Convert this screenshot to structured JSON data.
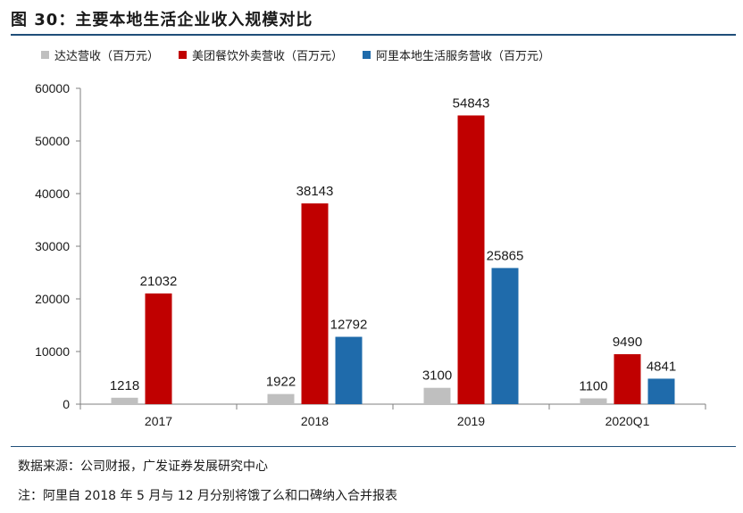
{
  "figure": {
    "title": "图 30：主要本地生活企业收入规模对比",
    "source": "数据来源：公司财报，广发证券发展研究中心",
    "note": "注：阿里自 2018 年 5 月与 12 月分别将饿了么和口碑纳入合并报表"
  },
  "chart_data": {
    "type": "bar",
    "categories": [
      "2017",
      "2018",
      "2019",
      "2020Q1"
    ],
    "series": [
      {
        "name": "达达营收（百万元）",
        "color": "#bfbfbf",
        "values": [
          1218,
          1922,
          3100,
          1100
        ]
      },
      {
        "name": "美团餐饮外卖营收（百万元）",
        "color": "#c00000",
        "values": [
          21032,
          38143,
          54843,
          9490
        ]
      },
      {
        "name": "阿里本地生活服务营收（百万元）",
        "color": "#1f6bab",
        "values": [
          null,
          12792,
          25865,
          4841
        ]
      }
    ],
    "ylim": [
      0,
      60000
    ],
    "yticks": [
      0,
      10000,
      20000,
      30000,
      40000,
      50000,
      60000
    ],
    "legend_position": "top",
    "grid": false,
    "data_labels": true
  }
}
